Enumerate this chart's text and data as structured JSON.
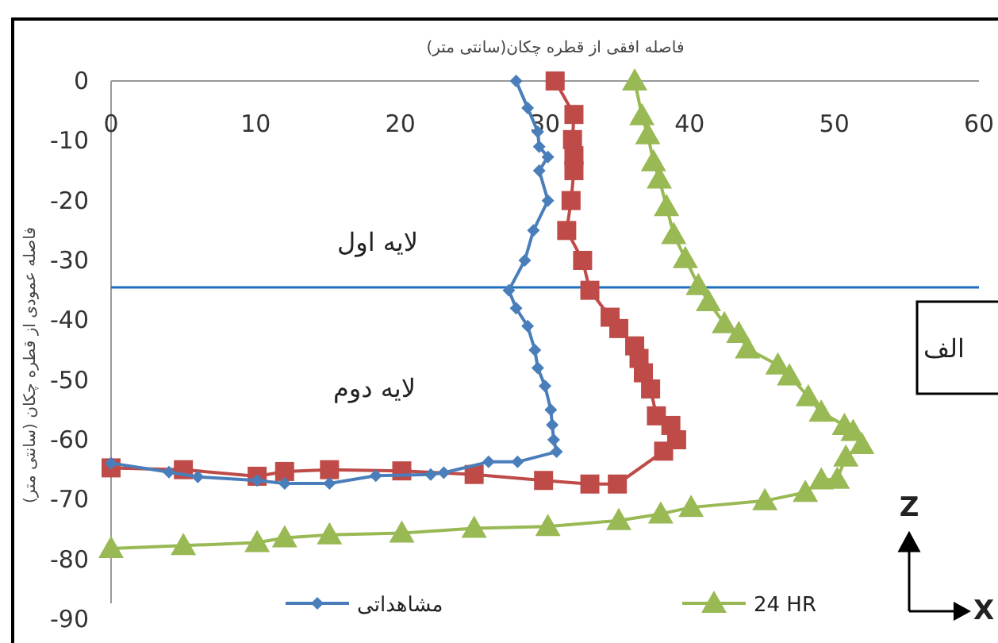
{
  "chart_data": {
    "type": "line",
    "xlabel": "فاصله افقی از قطره چکان(سانتی متر)",
    "ylabel": "فاصله عمودی از قطره چکان (سانتی متر)",
    "xlim": [
      0,
      60
    ],
    "xticks": [
      0,
      10,
      20,
      30,
      40,
      50,
      60
    ],
    "ylim": [
      -90,
      0
    ],
    "yticks": [
      0,
      -10,
      -20,
      -30,
      -40,
      -50,
      -60,
      -70,
      -80,
      -90
    ],
    "legend": "bottom",
    "ref_lines": [
      {
        "axis": "y",
        "value": -34.5,
        "color": "#1f6fbf"
      }
    ],
    "annotations": [
      "لایه اول",
      "لایه دوم",
      "الف",
      "Z",
      "X"
    ],
    "series": [
      {
        "name": "مشاهداتی",
        "color": "#4a7ebb",
        "marker": "diamond",
        "x": [
          28.0,
          28.8,
          29.5,
          29.6,
          30.2,
          29.6,
          30.2,
          29.2,
          28.6,
          27.5,
          28.0,
          28.8,
          29.3,
          29.5,
          30.0,
          30.4,
          30.5,
          30.6,
          30.8,
          28.1,
          26.1,
          23.0,
          22.1,
          18.3,
          15.1,
          12.0,
          10.1,
          6.0,
          4.0,
          0
        ],
        "values": [
          0,
          -4.5,
          -8.5,
          -11,
          -12.7,
          -15,
          -20,
          -25,
          -30,
          -35,
          -38,
          -41,
          -45,
          -48,
          -51,
          -55,
          -57.5,
          -60,
          -62,
          -63.7,
          -63.7,
          -65.5,
          -65.8,
          -66,
          -67.3,
          -67.3,
          -66.8,
          -66.2,
          -65.4,
          -63.9
        ]
      },
      {
        "color": "#be4b48",
        "marker": "square",
        "x": [
          30.7,
          32.0,
          31.9,
          32.0,
          32.0,
          31.8,
          31.5,
          32.6,
          33.1,
          34.5,
          35.1,
          36.2,
          36.5,
          36.8,
          37.3,
          37.7,
          38.7,
          39.1,
          38.2,
          35.0,
          33.1,
          29.9,
          25.1,
          20.1,
          15.1,
          12.0,
          10.1,
          5.0,
          0
        ],
        "values": [
          0,
          -5.6,
          -9.8,
          -12.5,
          -15,
          -20,
          -25,
          -30,
          -35,
          -39.5,
          -41.4,
          -44.3,
          -46.4,
          -48.8,
          -51.5,
          -56,
          -57.6,
          -60,
          -61.9,
          -67.4,
          -67.4,
          -66.8,
          -65.8,
          -65.2,
          -65,
          -65.3,
          -66.1,
          -65,
          -64.7
        ]
      },
      {
        "name": "24 HR",
        "color": "#98b954",
        "marker": "triangle",
        "x": [
          36.2,
          36.7,
          37.1,
          37.5,
          37.9,
          38.4,
          38.9,
          39.7,
          40.6,
          41.3,
          42.4,
          43.4,
          44.0,
          46.1,
          46.9,
          48.2,
          49.1,
          50.7,
          51.3,
          51.9,
          50.8,
          50.2,
          49.1,
          48.0,
          45.2,
          40.1,
          38.0,
          35.1,
          30.2,
          25.1,
          20.1,
          15.1,
          12.0,
          10.1,
          5.0,
          0
        ],
        "values": [
          0,
          -5.8,
          -9,
          -13.5,
          -16.4,
          -21,
          -25.7,
          -29.7,
          -34.2,
          -36.9,
          -40.6,
          -42.2,
          -44.8,
          -47.5,
          -49.3,
          -52.8,
          -55.4,
          -57.6,
          -58.6,
          -60.8,
          -62.9,
          -66.6,
          -66.7,
          -68.8,
          -70.2,
          -71.3,
          -72.4,
          -73.5,
          -74.5,
          -74.8,
          -75.6,
          -75.9,
          -76.4,
          -77.2,
          -77.7,
          -78.2
        ]
      }
    ]
  }
}
